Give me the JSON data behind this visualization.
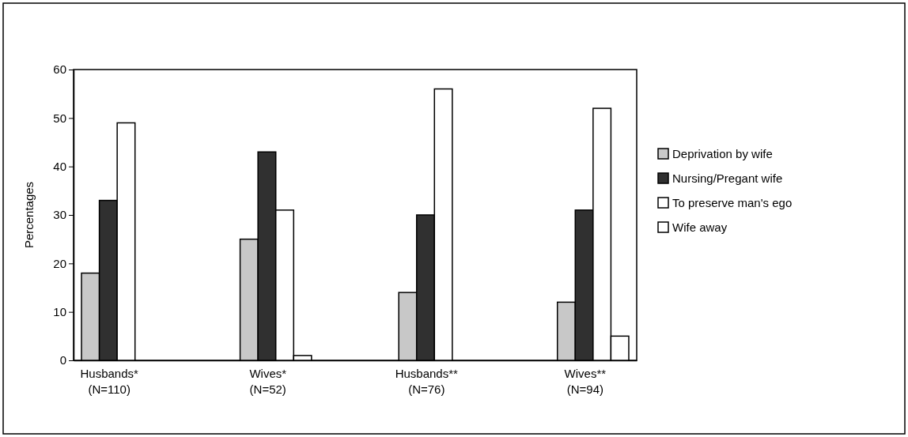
{
  "chart_data": {
    "type": "bar",
    "ylabel": "Percentages",
    "categories": [
      "Husbands*\n(N=110)",
      "Wives*\n(N=52)",
      "Husbands**\n(N=76)",
      "Wives**\n(N=94)"
    ],
    "series": [
      {
        "name": "Deprivation by wife",
        "color": "#c8c8c8",
        "values": [
          18,
          25,
          14,
          12
        ]
      },
      {
        "name": "Nursing/Pregant wife",
        "color": "#303030",
        "values": [
          33,
          43,
          30,
          31
        ]
      },
      {
        "name": "To preserve man's ego",
        "color": "#ffffff",
        "values": [
          49,
          31,
          56,
          52
        ]
      },
      {
        "name": "Wife away",
        "color": "#ffffff",
        "values": [
          0,
          1,
          0,
          5
        ]
      }
    ],
    "ylim": [
      0,
      60
    ],
    "yticks": [
      0,
      10,
      20,
      30,
      40,
      50,
      60
    ],
    "grid": false,
    "legend": "right"
  }
}
